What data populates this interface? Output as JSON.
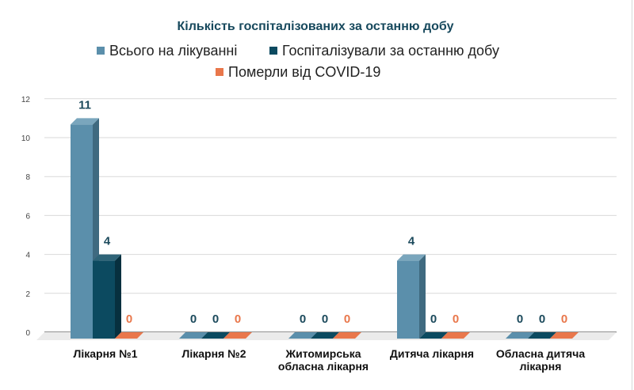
{
  "chart_data": {
    "type": "bar",
    "title": "Кількість госпіталізованих за останню добу",
    "categories": [
      [
        "Лікарня №1"
      ],
      [
        "Лікарня №2"
      ],
      [
        "Житомирська",
        "обласна лікарня"
      ],
      [
        "Дитяча лікарня"
      ],
      [
        "Обласна дитяча",
        "лікарня"
      ]
    ],
    "series": [
      {
        "name": "Всього на лікуванні",
        "color": "#5b8fab",
        "side": "#3f6a80",
        "top": "#7aa6bd",
        "label_color": "#1c4a5c",
        "values": [
          11,
          0,
          0,
          4,
          0
        ]
      },
      {
        "name": "Госпіталізували за останню добу",
        "color": "#0c4a60",
        "side": "#07303f",
        "top": "#2f6478",
        "label_color": "#1c4a5c",
        "values": [
          4,
          0,
          0,
          0,
          0
        ]
      },
      {
        "name": "Померли від COVID-19",
        "color": "#e9774b",
        "side": "#b85a36",
        "top": "#f0916b",
        "label_color": "#e9774b",
        "values": [
          0,
          0,
          0,
          0,
          0
        ]
      }
    ],
    "yticks": [
      0,
      2,
      4,
      6,
      8,
      10,
      12
    ],
    "ylim": [
      0,
      12
    ],
    "xlabel": "",
    "ylabel": "",
    "legend": "top-center",
    "grid": true
  }
}
